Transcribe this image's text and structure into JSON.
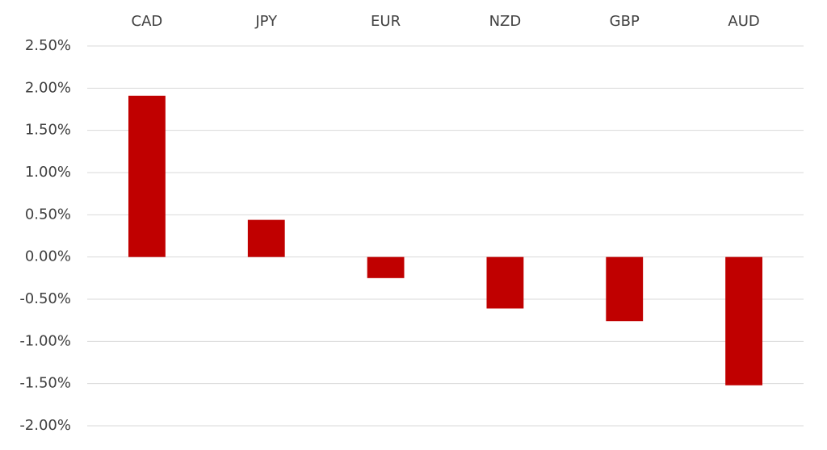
{
  "chart_data": {
    "type": "bar",
    "categories": [
      "CAD",
      "JPY",
      "EUR",
      "NZD",
      "GBP",
      "AUD"
    ],
    "values": [
      1.91,
      0.44,
      -0.25,
      -0.61,
      -0.76,
      -1.52
    ],
    "color": "#c00000",
    "ylim": [
      -2,
      2.5
    ],
    "yticks": [
      {
        "value": 2.5,
        "label": "2.50%"
      },
      {
        "value": 2,
        "label": "2.00%"
      },
      {
        "value": 1.5,
        "label": "1.50%"
      },
      {
        "value": 1,
        "label": "1.00%"
      },
      {
        "value": 0.5,
        "label": "0.50%"
      },
      {
        "value": 0,
        "label": "0.00%"
      },
      {
        "value": -0.5,
        "label": "-0.50%"
      },
      {
        "value": -1,
        "label": "-1.00%"
      },
      {
        "value": -1.5,
        "label": "-1.50%"
      },
      {
        "value": -2,
        "label": "-2.00%"
      }
    ],
    "grid": true
  }
}
